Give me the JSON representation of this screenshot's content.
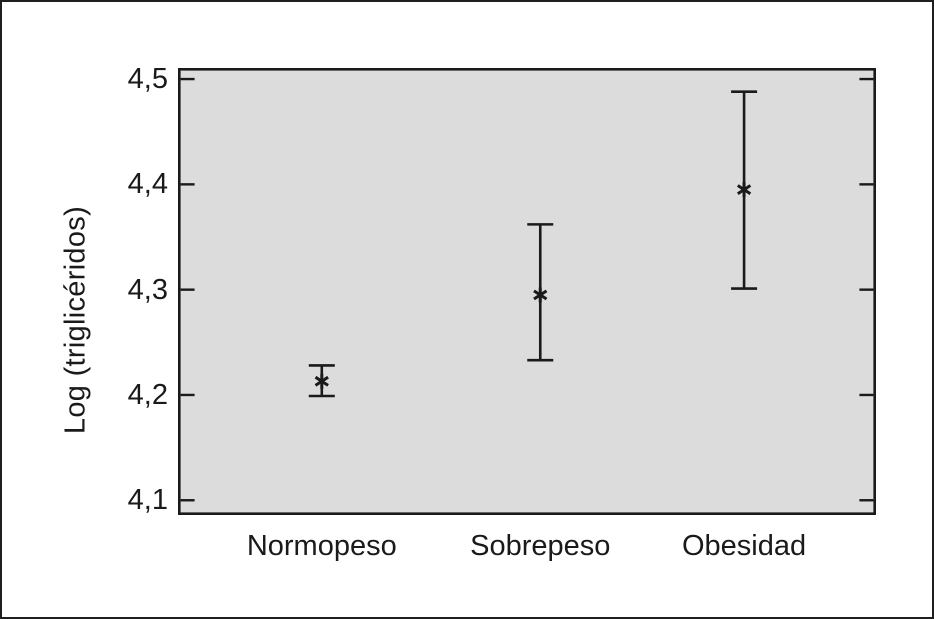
{
  "figure": {
    "background": "#ffffff",
    "outer_border_color": "#1f1f1f",
    "plot_background": "#dcdcdc",
    "line_color": "#1a1a1a"
  },
  "chart_data": {
    "type": "errorbar",
    "title": "",
    "xlabel": "",
    "ylabel": "Log (triglicéridos)",
    "categories": [
      "Normopeso",
      "Sobrepeso",
      "Obesidad"
    ],
    "decimal_separator": ",",
    "ylim": [
      4.086,
      4.5105
    ],
    "grid": false,
    "legend": false,
    "y_ticks": [
      {
        "value": 4.5,
        "label": "4,5"
      },
      {
        "value": 4.4,
        "label": "4,4"
      },
      {
        "value": 4.3,
        "label": "4,3"
      },
      {
        "value": 4.2,
        "label": "4,2"
      },
      {
        "value": 4.1,
        "label": "4,1"
      }
    ],
    "series": [
      {
        "name": "Log (triglicéridos)",
        "marker": "asterisk",
        "means": [
          4.213,
          4.295,
          4.395
        ],
        "ci_lower": [
          4.199,
          4.233,
          4.301
        ],
        "ci_upper": [
          4.228,
          4.362,
          4.488
        ]
      }
    ]
  }
}
